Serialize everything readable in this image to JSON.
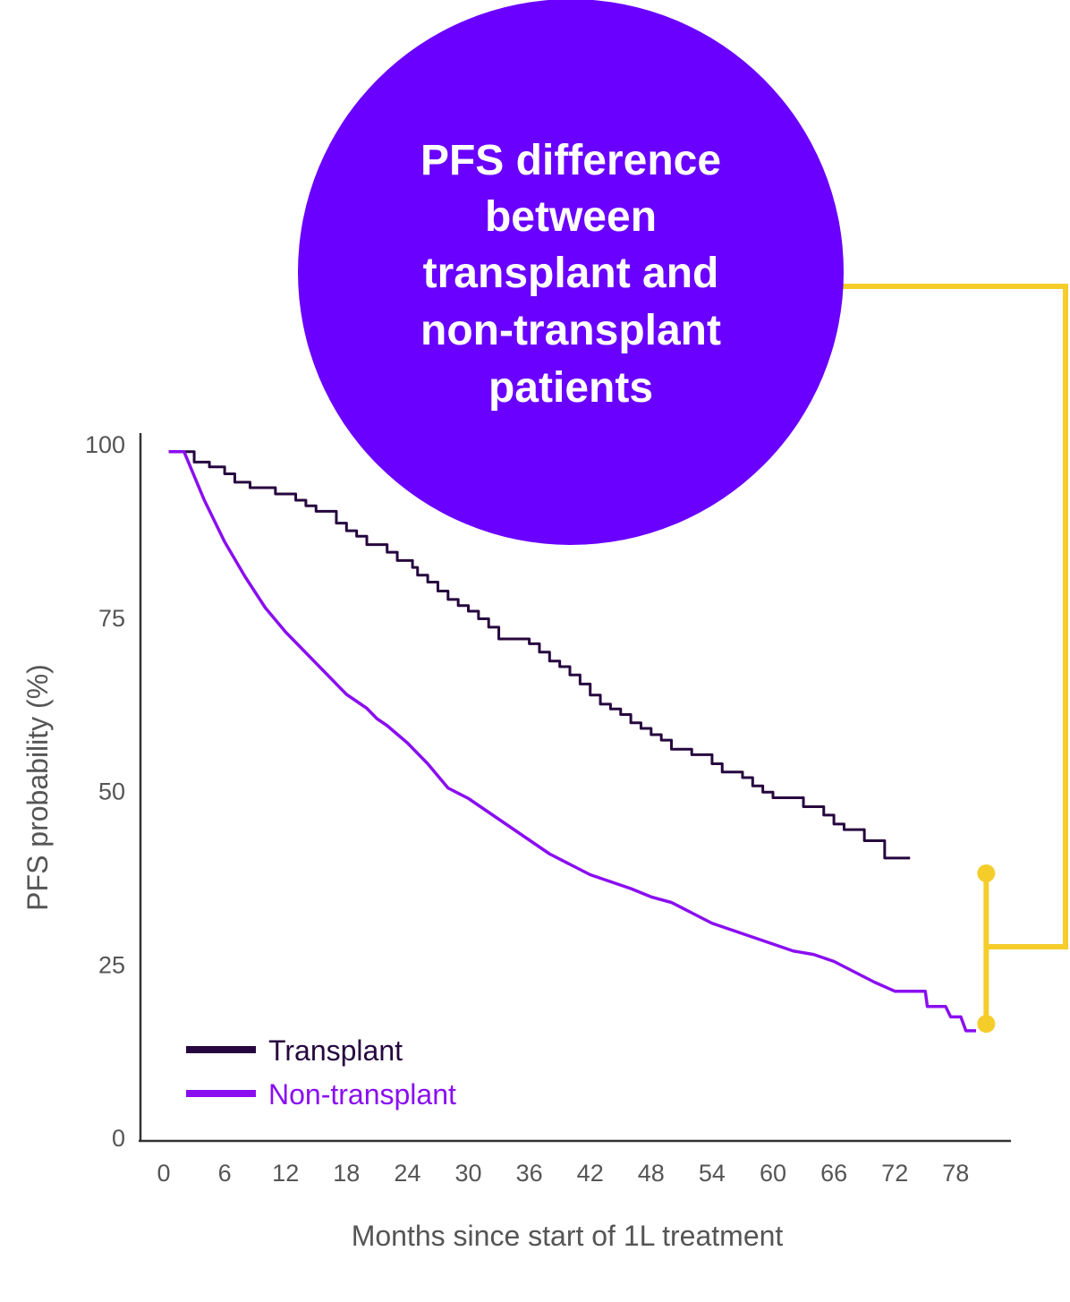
{
  "colors": {
    "transplant": "#26063f",
    "non_transplant": "#8a0ef0",
    "callout_fill": "#6a00ff",
    "callout_text": "#ffffff",
    "bracket": "#f5cd2b",
    "axis": "#333333",
    "tick_text": "#555555"
  },
  "callout": {
    "lines": [
      "PFS difference",
      "between",
      "transplant and",
      "non-transplant",
      "patients"
    ]
  },
  "chart_data": {
    "type": "line",
    "step": true,
    "title": "",
    "xlabel": "Months since start of 1L treatment",
    "ylabel": "PFS probability (%)",
    "xlim": [
      0,
      78
    ],
    "ylim": [
      0,
      100
    ],
    "x_ticks": [
      0,
      6,
      12,
      18,
      24,
      30,
      36,
      42,
      48,
      54,
      60,
      66,
      72,
      78
    ],
    "y_ticks": [
      0,
      25,
      50,
      75,
      100
    ],
    "grid": false,
    "legend": "bottom-left",
    "series": [
      {
        "name": "Transplant",
        "color_key": "transplant",
        "step": true,
        "points": [
          [
            0.5,
            99
          ],
          [
            2.5,
            99
          ],
          [
            3,
            97.5
          ],
          [
            4.5,
            96.8
          ],
          [
            6,
            95.8
          ],
          [
            7,
            94.6
          ],
          [
            8.5,
            93.8
          ],
          [
            11,
            92.9
          ],
          [
            13,
            92
          ],
          [
            14,
            91.2
          ],
          [
            15,
            90.4
          ],
          [
            17,
            88.7
          ],
          [
            18,
            87.6
          ],
          [
            19,
            86.8
          ],
          [
            20,
            85.6
          ],
          [
            22,
            84.5
          ],
          [
            23,
            83.3
          ],
          [
            24.5,
            82.3
          ],
          [
            25,
            81.2
          ],
          [
            26,
            80.2
          ],
          [
            27,
            78.9
          ],
          [
            28,
            77.7
          ],
          [
            29,
            76.8
          ],
          [
            30,
            76
          ],
          [
            31,
            74.9
          ],
          [
            32,
            73.7
          ],
          [
            33,
            72
          ],
          [
            36,
            71.3
          ],
          [
            37,
            70.1
          ],
          [
            38,
            68.8
          ],
          [
            39,
            68
          ],
          [
            40,
            66.8
          ],
          [
            41,
            65.5
          ],
          [
            42,
            63.9
          ],
          [
            43,
            62.6
          ],
          [
            44,
            61.9
          ],
          [
            45,
            61.1
          ],
          [
            46,
            59.9
          ],
          [
            47,
            59.1
          ],
          [
            48,
            58.2
          ],
          [
            49,
            57.4
          ],
          [
            50,
            56.1
          ],
          [
            52,
            55.3
          ],
          [
            54,
            54
          ],
          [
            55,
            52.8
          ],
          [
            57,
            52
          ],
          [
            58,
            50.8
          ],
          [
            59,
            49.9
          ],
          [
            60,
            49.1
          ],
          [
            63,
            47.8
          ],
          [
            65,
            46.6
          ],
          [
            66,
            45.3
          ],
          [
            67,
            44.5
          ],
          [
            69,
            42.9
          ],
          [
            71,
            40.4
          ],
          [
            73.5,
            40.4
          ]
        ]
      },
      {
        "name": "Non-transplant",
        "color_key": "non_transplant",
        "step": false,
        "points": [
          [
            0.5,
            99
          ],
          [
            2,
            99
          ],
          [
            4,
            92
          ],
          [
            6,
            86
          ],
          [
            8,
            81
          ],
          [
            10,
            76.5
          ],
          [
            12,
            73
          ],
          [
            14,
            70
          ],
          [
            16,
            67
          ],
          [
            18,
            64
          ],
          [
            20,
            62
          ],
          [
            21,
            60.5
          ],
          [
            22,
            59.5
          ],
          [
            24,
            57
          ],
          [
            26,
            54
          ],
          [
            28,
            50.5
          ],
          [
            30,
            49
          ],
          [
            32,
            47
          ],
          [
            34,
            45
          ],
          [
            36,
            43
          ],
          [
            38,
            41
          ],
          [
            40,
            39.5
          ],
          [
            42,
            38
          ],
          [
            44,
            37
          ],
          [
            46,
            36
          ],
          [
            48,
            34.8
          ],
          [
            50,
            34
          ],
          [
            52,
            32.5
          ],
          [
            54,
            31
          ],
          [
            56,
            30
          ],
          [
            58,
            29
          ],
          [
            60,
            28
          ],
          [
            62,
            27
          ],
          [
            64,
            26.5
          ],
          [
            66,
            25.5
          ],
          [
            68,
            24
          ],
          [
            70,
            22.5
          ],
          [
            72,
            21.2
          ],
          [
            75,
            21.2
          ],
          [
            75.2,
            19
          ],
          [
            77,
            19
          ],
          [
            77.5,
            17.5
          ],
          [
            78.5,
            17.5
          ],
          [
            79,
            15.5
          ],
          [
            80,
            15.5
          ]
        ]
      }
    ],
    "annotation": {
      "type": "difference-bracket",
      "x": 81,
      "y_top": 38.2,
      "y_bottom": 16.5
    }
  }
}
